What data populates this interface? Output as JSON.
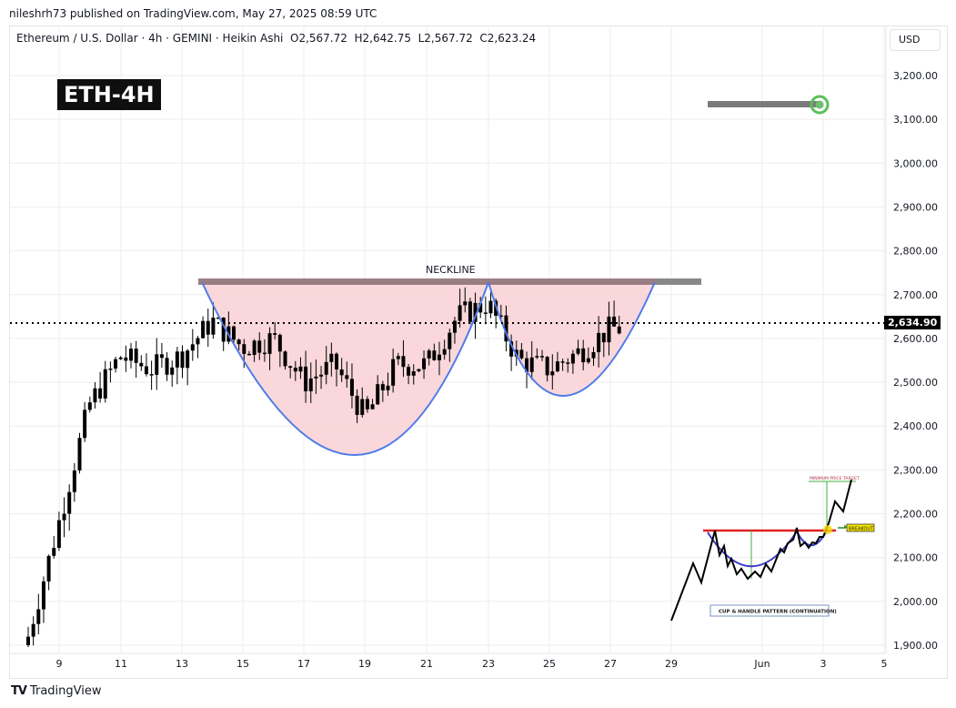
{
  "header": {
    "published": "nileshrh73 published on TradingView.com, May 27, 2025 08:59 UTC",
    "legend": "Ethereum / U.S. Dollar · 4h · GEMINI · Heikin Ashi  O2,567.72  H2,642.75  L2,567.72  C2,623.24",
    "currency": "USD"
  },
  "annotations": {
    "badge": "ETH-4H",
    "neckline_label": "NECKLINE",
    "current_price": "2,634.90",
    "inset_target_label": "MINIMUM PRICE TARGET",
    "inset_breakout_label": "BREAKOUT",
    "inset_caption": "CUP & HANDLE PATTERN (CONTINUATION)"
  },
  "footer": {
    "brand": "TradingView"
  },
  "colors": {
    "cup_fill": "#f8d0d3",
    "cup_line": "#4f7be8",
    "neckline": "#8c6b6e",
    "target_ring": "#5cbf5c",
    "candle": "#000000"
  },
  "chart_data": {
    "type": "candlestick",
    "title": "Ethereum / U.S. Dollar · 4h · GEMINI · Heikin Ashi",
    "xlabel": "",
    "ylabel": "USD",
    "x_ticks": [
      "9",
      "11",
      "13",
      "15",
      "17",
      "19",
      "21",
      "23",
      "25",
      "27",
      "29",
      "Jun",
      "3",
      "5"
    ],
    "y_ticks": [
      "3,200.00",
      "3,100.00",
      "3,000.00",
      "2,900.00",
      "2,800.00",
      "2,700.00",
      "2,600.00",
      "2,500.00",
      "2,400.00",
      "2,300.00",
      "2,200.00",
      "2,100.00",
      "2,000.00",
      "1,900.00"
    ],
    "ylim": [
      1880,
      3250
    ],
    "grid": true,
    "last_price": 2634.9,
    "ohlc_last": {
      "open": 2567.72,
      "high": 2642.75,
      "low": 2567.72,
      "close": 2623.24
    },
    "pattern": {
      "name": "Cup & Handle",
      "neckline": 2730,
      "cup_low": 2320,
      "handle_low": 2460,
      "target": 3135
    },
    "approx_closes_by_day": [
      {
        "day": "8",
        "close": 1920
      },
      {
        "day": "9",
        "close": 2180
      },
      {
        "day": "10",
        "close": 2450
      },
      {
        "day": "11",
        "close": 2560
      },
      {
        "day": "12",
        "close": 2530
      },
      {
        "day": "13",
        "close": 2560
      },
      {
        "day": "14",
        "close": 2640
      },
      {
        "day": "15",
        "close": 2580
      },
      {
        "day": "16",
        "close": 2600
      },
      {
        "day": "17",
        "close": 2500
      },
      {
        "day": "18",
        "close": 2540
      },
      {
        "day": "19",
        "close": 2420
      },
      {
        "day": "20",
        "close": 2540
      },
      {
        "day": "21",
        "close": 2540
      },
      {
        "day": "22",
        "close": 2650
      },
      {
        "day": "23",
        "close": 2680
      },
      {
        "day": "24",
        "close": 2550
      },
      {
        "day": "25",
        "close": 2530
      },
      {
        "day": "26",
        "close": 2570
      },
      {
        "day": "27",
        "close": 2623
      }
    ]
  }
}
